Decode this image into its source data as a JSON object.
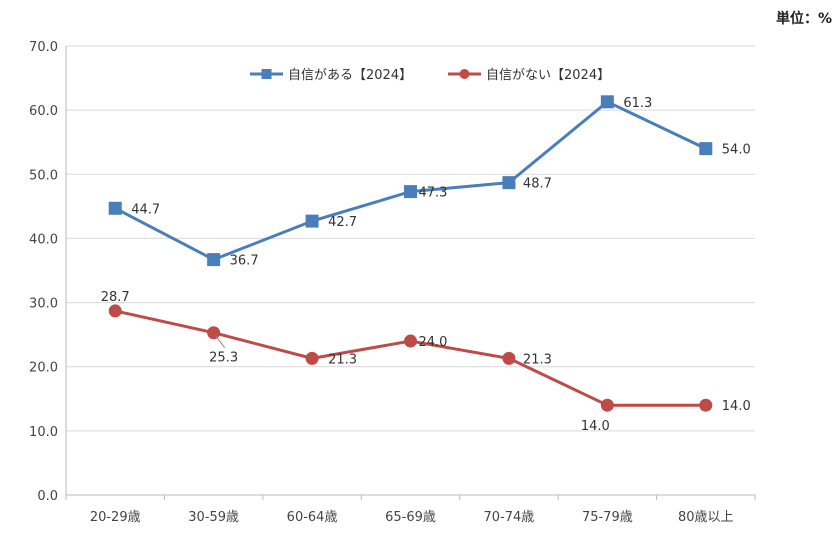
{
  "unit_label": "単位：%",
  "chart_data": {
    "type": "line",
    "categories": [
      "20-29歳",
      "30-59歳",
      "60-64歳",
      "65-69歳",
      "70-74歳",
      "75-79歳",
      "80歳以上"
    ],
    "ylim": [
      0,
      70
    ],
    "yticks": [
      "0.0",
      "10.0",
      "20.0",
      "30.0",
      "40.0",
      "50.0",
      "60.0",
      "70.0"
    ],
    "grid": true,
    "legend_position": "top",
    "series": [
      {
        "name": "自信がある【2024】",
        "color": "#4a7ebb",
        "marker": "square",
        "values": [
          44.7,
          36.7,
          42.7,
          47.3,
          48.7,
          61.3,
          54.0
        ],
        "labels": [
          "44.7",
          "36.7",
          "42.7",
          "47.3",
          "48.7",
          "61.3",
          "54.0"
        ]
      },
      {
        "name": "自信がない【2024】",
        "color": "#be4b48",
        "marker": "circle",
        "values": [
          28.7,
          25.3,
          21.3,
          24.0,
          21.3,
          14.0,
          14.0
        ],
        "labels": [
          "28.7",
          "25.3",
          "21.3",
          "24.0",
          "21.3",
          "14.0",
          "14.0"
        ]
      }
    ]
  }
}
